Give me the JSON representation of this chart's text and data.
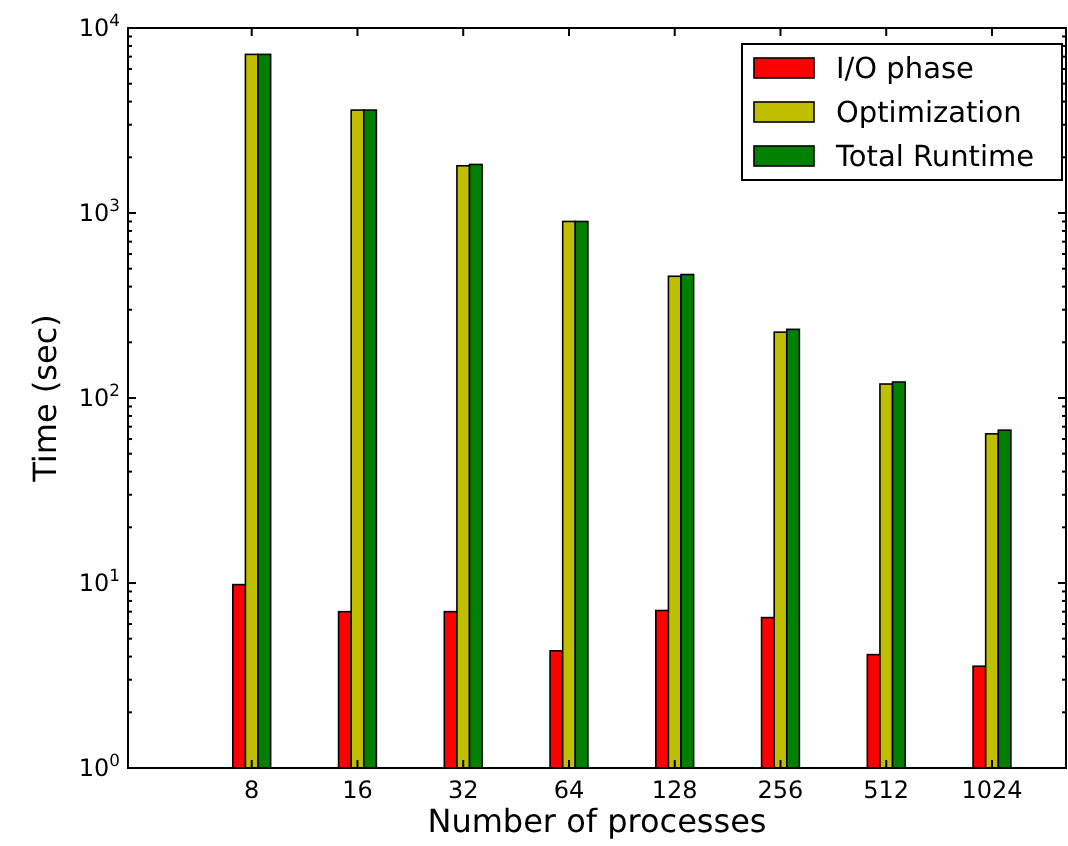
{
  "chart_data": {
    "type": "bar",
    "xlabel": "Number of processes",
    "ylabel": "Time (sec)",
    "categories": [
      "8",
      "16",
      "32",
      "64",
      "128",
      "256",
      "512",
      "1024"
    ],
    "series": [
      {
        "name": "I/O phase",
        "color": "#ff0000",
        "values": [
          9.8,
          7.0,
          7.0,
          4.3,
          7.1,
          6.5,
          4.1,
          3.55
        ]
      },
      {
        "name": "Optimization",
        "color": "#bfbf00",
        "values": [
          7200,
          3600,
          1800,
          900,
          455,
          227,
          119,
          64
        ]
      },
      {
        "name": "Total Runtime",
        "color": "#008000",
        "values": [
          7200,
          3600,
          1830,
          900,
          465,
          235,
          122,
          67
        ]
      }
    ],
    "log": "y",
    "ylim": [
      1,
      10000
    ],
    "yticks": [
      {
        "value": 1,
        "label": "10$^{0}$"
      },
      {
        "value": 10,
        "label": "10$^{1}$"
      },
      {
        "value": 100,
        "label": "10$^{2}$"
      },
      {
        "value": 1000,
        "label": "10$^{3}$"
      },
      {
        "value": 10000,
        "label": "10$^{4}$"
      }
    ],
    "legend": "top right",
    "grid": false
  }
}
